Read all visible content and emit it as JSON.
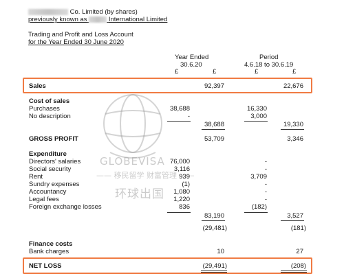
{
  "header": {
    "company_suffix": "Co. Limited (by shares)",
    "previous_prefix": "previously known as",
    "previous_suffix": "International Limited",
    "title_line1": "Trading and Profit and Loss Account",
    "title_line2": "for the Year Ended 30 June 2020"
  },
  "columns": {
    "current_label": "Year Ended",
    "current_date": "30.6.20",
    "prior_label": "Period",
    "prior_date": "4.6.18 to 30.6.19",
    "currency": "£"
  },
  "sales": {
    "label": "Sales",
    "current": "92,397",
    "prior": "22,676"
  },
  "cost_of_sales": {
    "heading": "Cost of sales",
    "rows": [
      {
        "label": "Purchases",
        "current": "38,688",
        "prior": "16,330"
      },
      {
        "label": "No description",
        "current": "-",
        "prior": "3,000"
      }
    ],
    "total_current": "38,688",
    "total_prior": "19,330"
  },
  "gross_profit": {
    "label": "GROSS PROFIT",
    "current": "53,709",
    "prior": "3,346"
  },
  "expenditure": {
    "heading": "Expenditure",
    "rows": [
      {
        "label": "Directors' salaries",
        "current": "76,000",
        "prior": "-"
      },
      {
        "label": "Social security",
        "current": "3,116",
        "prior": "-"
      },
      {
        "label": "Rent",
        "current": "939",
        "prior": "3,709"
      },
      {
        "label": "Sundry expenses",
        "current": "(1)",
        "prior": "-"
      },
      {
        "label": "Accountancy",
        "current": "1,080",
        "prior": "-"
      },
      {
        "label": "Legal fees",
        "current": "1,220",
        "prior": "-"
      },
      {
        "label": "Foreign exchange losses",
        "current": "836",
        "prior": "(182)"
      }
    ],
    "total_current": "83,190",
    "total_prior": "3,527",
    "after_current": "(29,481)",
    "after_prior": "(181)"
  },
  "finance_costs": {
    "heading": "Finance costs",
    "rows": [
      {
        "label": "Bank charges",
        "current": "10",
        "prior": "27"
      }
    ]
  },
  "net_loss": {
    "label": "NET LOSS",
    "current": "(29,491)",
    "prior": "(208)"
  },
  "watermark": {
    "brand": "GLOBEVISA",
    "tagline": "—— 移民留学 财富管理 ——",
    "chinese": "环球出国"
  },
  "colors": {
    "highlight": "#f07b43",
    "watermark": "#a0a0a0"
  }
}
